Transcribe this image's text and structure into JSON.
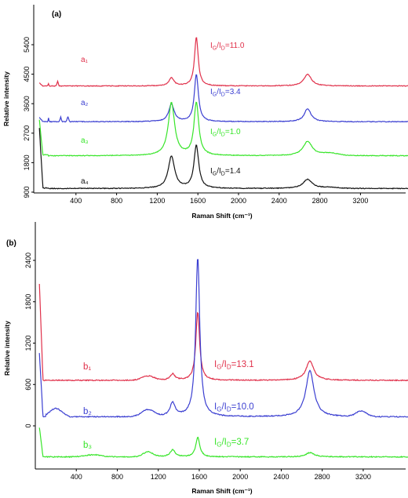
{
  "chart_data": [
    {
      "type": "line",
      "panel_label": "(a)",
      "xlabel": "Raman Shift (cm⁻¹)",
      "ylabel": "Relative intensity",
      "xlim": [
        0,
        4000
      ],
      "ylim": [
        500,
        5800
      ],
      "x_ticks": [
        "400",
        "800",
        "1200",
        "1600",
        "2000",
        "2400",
        "2800",
        "3200"
      ],
      "y_ticks": [
        "900",
        "1800",
        "2700",
        "3600",
        "4500",
        "5400"
      ],
      "series": [
        {
          "name": "a₁",
          "color": "#e0304a",
          "ratio_label": "I_G/I_D=11.0",
          "ratio_g": "G",
          "ratio_d": "D",
          "ratio_value": "=11.0",
          "peaks": {
            "D": 4380,
            "G": 5630,
            "2D": 4500
          }
        },
        {
          "name": "a₂",
          "color": "#3b3fd1",
          "ratio_label": "I_G/I_D=3.4",
          "ratio_g": "G",
          "ratio_d": "D",
          "ratio_value": "=3.4",
          "peaks": {
            "D": 3580,
            "G": 4500,
            "2D": 3450
          }
        },
        {
          "name": "a₃",
          "color": "#38e52a",
          "ratio_label": "I_G/I_D=1.0",
          "ratio_g": "G",
          "ratio_d": "D",
          "ratio_value": "=1.0",
          "peaks": {
            "D": 3620,
            "G": 3620,
            "2D": 2450
          }
        },
        {
          "name": "a₄",
          "color": "#111111",
          "ratio_label": "I_G/I_D=1.4",
          "ratio_g": "G",
          "ratio_d": "D",
          "ratio_value": "=1.4",
          "peaks": {
            "D": 1990,
            "G": 2320,
            "2D": 1290
          }
        }
      ]
    },
    {
      "type": "line",
      "panel_label": "(b)",
      "xlabel": "Raman Shift (cm⁻¹)",
      "ylabel": "Relative intensity",
      "xlim": [
        0,
        4000
      ],
      "ylim": [
        -800,
        3300
      ],
      "x_ticks": [
        "400",
        "800",
        "1200",
        "1600",
        "2000",
        "2400",
        "2800",
        "3200"
      ],
      "y_ticks": [
        "0",
        "600",
        "1200",
        "1800",
        "2400"
      ],
      "series": [
        {
          "name": "b₁",
          "color": "#e0304a",
          "ratio_label": "I_G/I_D=13.1",
          "ratio_g": "G",
          "ratio_d": "D",
          "ratio_value": "=13.1",
          "peaks": {
            "D": 750,
            "G": 1650,
            "2D": 940
          }
        },
        {
          "name": "b₂",
          "color": "#3b3fd1",
          "ratio_label": "I_G/I_D=10.0",
          "ratio_g": "G",
          "ratio_d": "D",
          "ratio_value": "=10.0",
          "peaks": {
            "D": 330,
            "G": 2440,
            "2D": 800
          }
        },
        {
          "name": "b₃",
          "color": "#38e52a",
          "ratio_label": "I_G/I_D=3.7",
          "ratio_g": "G",
          "ratio_d": "D",
          "ratio_value": "=3.7",
          "peaks": {
            "D": -350,
            "G": -170,
            "2D": -390
          }
        }
      ]
    }
  ]
}
